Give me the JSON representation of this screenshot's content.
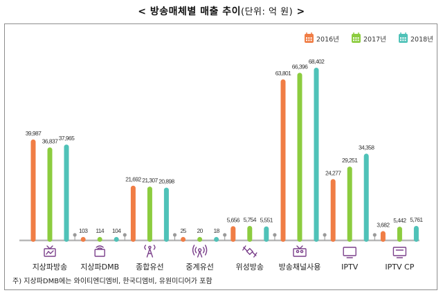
{
  "title": {
    "main": "< 방송매체별 매출 추이",
    "unit": "(단위: 억 원)",
    "end": " >"
  },
  "colors": {
    "2016": "#f07d45",
    "2017": "#8ccc3f",
    "2018": "#4fc2b8",
    "axis": "#b8b8b8",
    "icon": "#7a3f8a"
  },
  "chart_data": {
    "type": "bar",
    "categories": [
      "지상파방송",
      "지상파DMB",
      "종합유선",
      "중계유선",
      "위성방송",
      "방송채널사용",
      "IPTV",
      "IPTV CP"
    ],
    "category_icons": [
      "tv-antenna-icon",
      "dmb-device-icon",
      "cable-tower-icon",
      "relay-broadcast-icon",
      "satellite-icon",
      "channel-users-icon",
      "iptv-monitor-icon",
      "iptv-cp-monitor-icon"
    ],
    "series": [
      {
        "name": "2016년",
        "values": [
          39987,
          103,
          21692,
          25,
          5656,
          63801,
          24277,
          3682
        ],
        "labels": [
          "39,987",
          "103",
          "21,692",
          "25",
          "5,656",
          "63,801",
          "24,277",
          "3,682"
        ]
      },
      {
        "name": "2017년",
        "values": [
          36837,
          114,
          21307,
          20,
          5754,
          66396,
          29251,
          5442
        ],
        "labels": [
          "36,837",
          "114",
          "21,307",
          "20",
          "5,754",
          "66,396",
          "29,251",
          "5,442"
        ]
      },
      {
        "name": "2018년",
        "values": [
          37965,
          104,
          20898,
          18,
          5551,
          68402,
          34358,
          5761
        ],
        "labels": [
          "37,965",
          "104",
          "20,898",
          "18",
          "5,551",
          "68,402",
          "34,358",
          "5,761"
        ]
      }
    ],
    "legend_position": "top-right",
    "grid": false
  },
  "footnote": "주) 지상파DMB에는 와이티엔디엠비, 한국디엠비, 유원미디어가 포함"
}
